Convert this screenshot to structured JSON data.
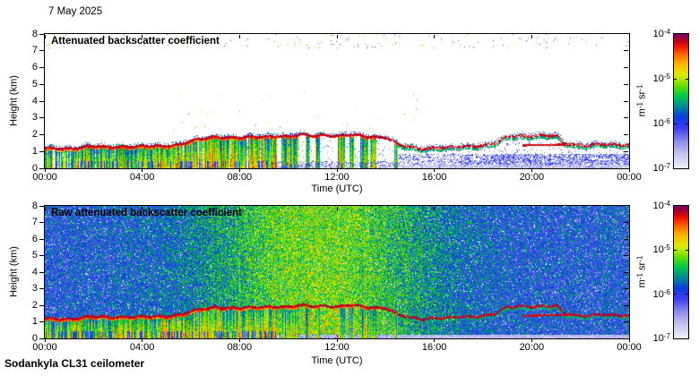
{
  "figure": {
    "date_label": "7 May 2025",
    "footer": "Sodankyla CL31 ceilometer",
    "background": "#ffffff"
  },
  "panels": [
    {
      "title": "Attenuated backscatter coefficient"
    },
    {
      "title": "Raw attenuated backscatter coefficient"
    }
  ],
  "axis": {
    "x_label": "Time (UTC)",
    "x_tick_labels": [
      "00:00",
      "04:00",
      "08:00",
      "12:00",
      "16:00",
      "20:00",
      "00:00"
    ],
    "y_label": "Height (km)",
    "y_tick_labels": [
      "8",
      "7",
      "6",
      "5",
      "4",
      "3",
      "2",
      "1",
      "0"
    ]
  },
  "colorbar": {
    "tick_labels": [
      {
        "base": "10",
        "exp": "-4"
      },
      {
        "base": "10",
        "exp": "-5"
      },
      {
        "base": "10",
        "exp": "-6"
      },
      {
        "base": "10",
        "exp": "-7"
      }
    ],
    "unit_parts": [
      {
        "base": "m",
        "exp": "-1"
      },
      {
        "base": " sr",
        "exp": "-1"
      }
    ]
  },
  "chart_data": {
    "type": "heatmap",
    "date": "7 May 2025",
    "instrument": "Sodankyla CL31 ceilometer",
    "panel_titles": [
      "Attenuated backscatter coefficient",
      "Raw attenuated backscatter coefficient"
    ],
    "x": {
      "label": "Time (UTC)",
      "range_hours": [
        0,
        24
      ],
      "tick_hours": [
        0,
        4,
        8,
        12,
        16,
        20,
        24
      ],
      "tick_labels": [
        "00:00",
        "04:00",
        "08:00",
        "12:00",
        "16:00",
        "20:00",
        "00:00"
      ]
    },
    "y": {
      "label": "Height (km)",
      "range_km": [
        0,
        8
      ],
      "tick_step_km": 1
    },
    "z": {
      "unit": "m^-1 sr^-1",
      "scale": "log10",
      "range_exponents": [
        -7,
        -4
      ],
      "tick_exponents": [
        -4,
        -5,
        -6,
        -7
      ],
      "legend_position": "right"
    },
    "colormap_stops": [
      [
        0.0,
        240,
        240,
        250
      ],
      [
        0.1,
        198,
        198,
        240
      ],
      [
        0.2,
        140,
        140,
        236
      ],
      [
        0.3,
        60,
        60,
        244
      ],
      [
        0.38,
        10,
        60,
        220
      ],
      [
        0.46,
        0,
        140,
        150
      ],
      [
        0.54,
        0,
        200,
        70
      ],
      [
        0.62,
        110,
        225,
        0
      ],
      [
        0.7,
        225,
        235,
        0
      ],
      [
        0.78,
        255,
        180,
        0
      ],
      [
        0.85,
        255,
        100,
        0
      ],
      [
        0.91,
        240,
        20,
        0
      ],
      [
        0.96,
        175,
        0,
        40
      ],
      [
        1.0,
        118,
        0,
        92
      ]
    ],
    "boundary_layer_top_km": [
      [
        0,
        1.15
      ],
      [
        0.5,
        1.2
      ],
      [
        1,
        1.18
      ],
      [
        1.5,
        1.24
      ],
      [
        2,
        1.3
      ],
      [
        2.5,
        1.27
      ],
      [
        3,
        1.31
      ],
      [
        3.5,
        1.29
      ],
      [
        4,
        1.27
      ],
      [
        4.5,
        1.32
      ],
      [
        5,
        1.36
      ],
      [
        5.5,
        1.42
      ],
      [
        6,
        1.6
      ],
      [
        6.5,
        1.78
      ],
      [
        7,
        1.9
      ],
      [
        7.5,
        1.86
      ],
      [
        8,
        1.8
      ],
      [
        8.5,
        1.84
      ],
      [
        9,
        1.9
      ],
      [
        9.5,
        1.94
      ],
      [
        10,
        1.88
      ],
      [
        10.5,
        1.98
      ],
      [
        11,
        1.94
      ],
      [
        11.5,
        2.0
      ],
      [
        12,
        1.9
      ],
      [
        12.5,
        1.98
      ],
      [
        13,
        1.94
      ],
      [
        13.5,
        1.88
      ],
      [
        14,
        1.84
      ],
      [
        14.5,
        1.4
      ],
      [
        15,
        1.24
      ],
      [
        15.5,
        1.18
      ],
      [
        16,
        1.24
      ],
      [
        16.5,
        1.2
      ],
      [
        17,
        1.28
      ],
      [
        17.5,
        1.33
      ],
      [
        18,
        1.38
      ],
      [
        18.5,
        1.48
      ],
      [
        19,
        1.88
      ],
      [
        19.5,
        1.94
      ],
      [
        20,
        1.96
      ],
      [
        20.5,
        1.94
      ],
      [
        21,
        1.92
      ],
      [
        21.3,
        1.5
      ],
      [
        21.8,
        1.42
      ],
      [
        22.3,
        1.38
      ],
      [
        22.8,
        1.42
      ],
      [
        23.3,
        1.38
      ],
      [
        24,
        1.42
      ]
    ],
    "secondary_layer_segments": [
      {
        "t0": 19.6,
        "h0": 1.36,
        "t1": 21.4,
        "h1": 1.42
      }
    ],
    "regimes": {
      "filled_end_hour": 9.5,
      "broken_end_hour": 14.5,
      "stratified_end_hour": 24
    },
    "raw_noise": {
      "night_level": 0.36,
      "day_boost": 0.26,
      "day_peak_hour": 11.2,
      "day_width_hours": 4.8,
      "white_speck_fraction": 0.035
    },
    "top_speck_band_km": [
      7.15,
      8
    ]
  }
}
